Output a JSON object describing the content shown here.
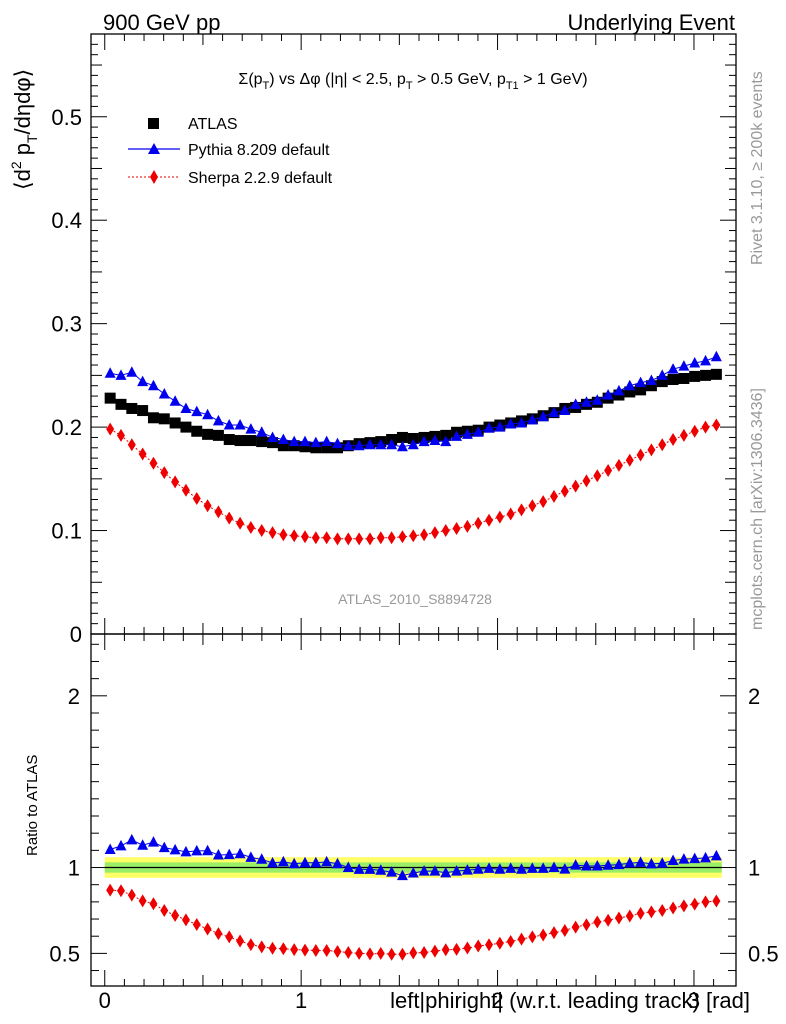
{
  "header": {
    "left": "900 GeV pp",
    "right": "Underlying Event"
  },
  "side_text": {
    "top": "Rivet 3.1.10, ≥ 200k events",
    "bottom": "mcplots.cern.ch [arXiv:1306.3436]"
  },
  "watermark": "ATLAS_2010_S8894728",
  "colors": {
    "atlas": "#000000",
    "pythia": "#0000ee",
    "sherpa": "#ee0000",
    "band_outer": "#ffff66",
    "band_inner": "#99ee66",
    "side_text": "#999999",
    "watermark": "#999999"
  },
  "chart_data": [
    {
      "type": "scatter",
      "title": "Σ(p_T) vs Δφ (|η| < 2.5, p_T > 0.5 GeV, p_T1 > 1 GeV)",
      "title_parts": {
        "a": "Σ(p",
        "a_sub": "T",
        "b": ") vs Δφ (|η| < 2.5, p",
        "b_sub": "T",
        "c": " > 0.5 GeV, p",
        "c_sub": "T1",
        "d": " > 1 GeV)"
      },
      "ylabel": "⟨d² p_T/dηdφ⟩",
      "ylabel_parts": {
        "a": "⟨d",
        "a_sup": "2",
        "b": " p",
        "b_sub": "T",
        "c": "/dηdφ⟩"
      },
      "xlim": [
        -0.07,
        3.214
      ],
      "ylim": [
        0,
        0.58
      ],
      "yticks": [
        "0",
        "0.1",
        "0.2",
        "0.3",
        "0.4",
        "0.5"
      ],
      "legend_position": "top-left",
      "series": [
        {
          "name": "ATLAS",
          "marker": "square",
          "values": [
            0.228,
            0.222,
            0.218,
            0.216,
            0.209,
            0.208,
            0.204,
            0.2,
            0.196,
            0.193,
            0.192,
            0.188,
            0.187,
            0.187,
            0.186,
            0.185,
            0.182,
            0.182,
            0.181,
            0.18,
            0.18,
            0.18,
            0.182,
            0.184,
            0.185,
            0.186,
            0.188,
            0.19,
            0.189,
            0.19,
            0.191,
            0.192,
            0.195,
            0.196,
            0.197,
            0.2,
            0.202,
            0.204,
            0.206,
            0.208,
            0.211,
            0.214,
            0.218,
            0.219,
            0.222,
            0.224,
            0.228,
            0.231,
            0.234,
            0.236,
            0.24,
            0.244,
            0.246,
            0.247,
            0.249,
            0.25,
            0.251
          ]
        },
        {
          "name": "Pythia 8.209 default",
          "marker": "triangle",
          "values": [
            0.252,
            0.25,
            0.253,
            0.244,
            0.24,
            0.232,
            0.225,
            0.218,
            0.215,
            0.212,
            0.206,
            0.202,
            0.202,
            0.198,
            0.195,
            0.19,
            0.188,
            0.186,
            0.186,
            0.185,
            0.186,
            0.184,
            0.182,
            0.182,
            0.183,
            0.183,
            0.183,
            0.181,
            0.183,
            0.186,
            0.187,
            0.186,
            0.191,
            0.193,
            0.195,
            0.199,
            0.2,
            0.203,
            0.204,
            0.207,
            0.21,
            0.214,
            0.216,
            0.222,
            0.224,
            0.226,
            0.231,
            0.235,
            0.24,
            0.243,
            0.245,
            0.25,
            0.256,
            0.259,
            0.262,
            0.264,
            0.268
          ]
        },
        {
          "name": "Sherpa 2.2.9 default",
          "marker": "diamond",
          "values": [
            0.198,
            0.192,
            0.183,
            0.174,
            0.165,
            0.156,
            0.147,
            0.139,
            0.131,
            0.124,
            0.118,
            0.112,
            0.107,
            0.103,
            0.1,
            0.098,
            0.096,
            0.095,
            0.094,
            0.093,
            0.093,
            0.092,
            0.092,
            0.092,
            0.092,
            0.093,
            0.093,
            0.094,
            0.095,
            0.096,
            0.098,
            0.1,
            0.102,
            0.104,
            0.107,
            0.11,
            0.113,
            0.116,
            0.12,
            0.124,
            0.128,
            0.133,
            0.138,
            0.143,
            0.148,
            0.153,
            0.158,
            0.163,
            0.168,
            0.173,
            0.178,
            0.183,
            0.188,
            0.192,
            0.196,
            0.2,
            0.202
          ]
        }
      ]
    },
    {
      "type": "scatter",
      "ylabel": "Ratio to ATLAS",
      "xlabel": "left|phiright| (w.r.t. leading track) [rad]",
      "xlim": [
        -0.07,
        3.214
      ],
      "ylim": [
        0.31,
        2.36
      ],
      "yticks": [
        "0.5",
        "1",
        "2"
      ],
      "xticks": [
        "0",
        "1",
        "2",
        "3"
      ],
      "band_outer": [
        0.94,
        1.06
      ],
      "band_inner": [
        0.97,
        1.03
      ],
      "series": [
        {
          "name": "Pythia 8.209 default",
          "marker": "triangle",
          "values": [
            1.105,
            1.126,
            1.161,
            1.13,
            1.148,
            1.116,
            1.103,
            1.091,
            1.097,
            1.098,
            1.073,
            1.075,
            1.08,
            1.059,
            1.048,
            1.027,
            1.033,
            1.022,
            1.028,
            1.028,
            1.033,
            1.022,
            1.0,
            0.989,
            0.989,
            0.984,
            0.973,
            0.953,
            0.968,
            0.979,
            0.979,
            0.969,
            0.979,
            0.985,
            0.99,
            0.995,
            0.99,
            0.995,
            0.99,
            0.995,
            0.995,
            1.0,
            0.991,
            1.014,
            1.009,
            1.009,
            1.013,
            1.017,
            1.026,
            1.03,
            1.021,
            1.025,
            1.041,
            1.049,
            1.052,
            1.056,
            1.068
          ]
        },
        {
          "name": "Sherpa 2.2.9 default",
          "marker": "diamond",
          "values": [
            0.868,
            0.865,
            0.839,
            0.806,
            0.789,
            0.75,
            0.721,
            0.695,
            0.668,
            0.642,
            0.615,
            0.596,
            0.572,
            0.551,
            0.538,
            0.53,
            0.527,
            0.522,
            0.519,
            0.517,
            0.517,
            0.511,
            0.505,
            0.5,
            0.497,
            0.5,
            0.495,
            0.495,
            0.503,
            0.505,
            0.513,
            0.521,
            0.523,
            0.531,
            0.543,
            0.55,
            0.559,
            0.569,
            0.583,
            0.596,
            0.607,
            0.621,
            0.633,
            0.653,
            0.667,
            0.683,
            0.693,
            0.706,
            0.718,
            0.733,
            0.742,
            0.75,
            0.764,
            0.777,
            0.787,
            0.8,
            0.805
          ]
        }
      ]
    }
  ]
}
